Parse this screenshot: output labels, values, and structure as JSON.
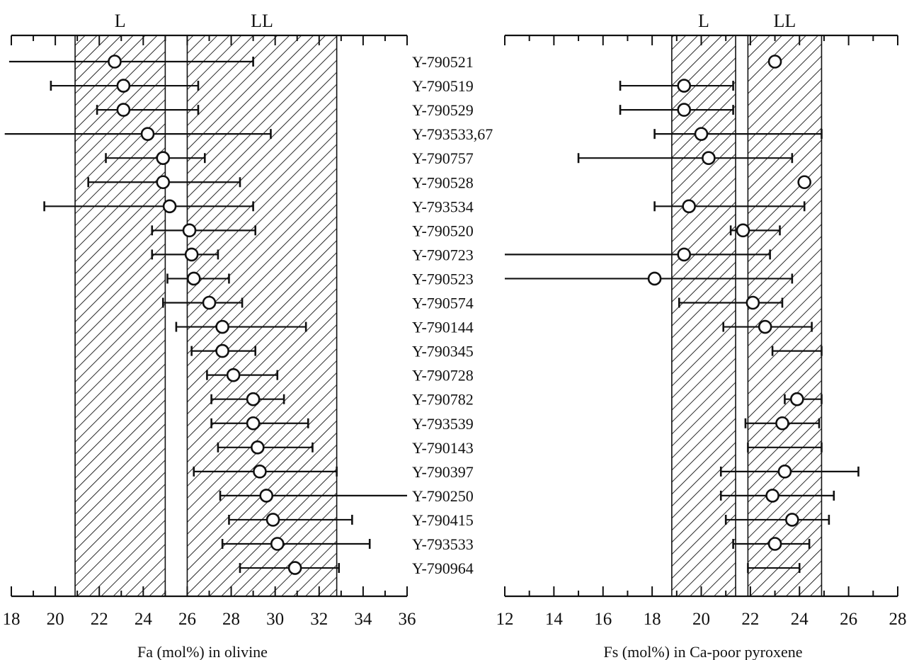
{
  "chart_data": [
    {
      "type": "scatter",
      "xlabel": "Fa (mol%) in olivine",
      "xlim": [
        18,
        36
      ],
      "xticks": [
        "18",
        "20",
        "22",
        "24",
        "26",
        "28",
        "30",
        "32",
        "34",
        "36"
      ],
      "zones": [
        {
          "label": "L",
          "range": [
            20.9,
            25.0
          ]
        },
        {
          "label": "LL",
          "range": [
            26.0,
            32.8
          ]
        }
      ],
      "points": [
        {
          "name": "Y-790521",
          "mean": 22.7,
          "min": 17.9,
          "max": 29.0
        },
        {
          "name": "Y-790519",
          "mean": 23.1,
          "min": 19.8,
          "max": 26.5
        },
        {
          "name": "Y-790529",
          "mean": 23.1,
          "min": 21.9,
          "max": 26.5
        },
        {
          "name": "Y-793533,67",
          "mean": 24.2,
          "min": 17.7,
          "max": 29.8
        },
        {
          "name": "Y-790757",
          "mean": 24.9,
          "min": 22.3,
          "max": 26.8
        },
        {
          "name": "Y-790528",
          "mean": 24.9,
          "min": 21.5,
          "max": 28.4
        },
        {
          "name": "Y-793534",
          "mean": 25.2,
          "min": 19.5,
          "max": 29.0
        },
        {
          "name": "Y-790520",
          "mean": 26.1,
          "min": 24.4,
          "max": 29.1
        },
        {
          "name": "Y-790723",
          "mean": 26.2,
          "min": 24.4,
          "max": 27.4
        },
        {
          "name": "Y-790523",
          "mean": 26.3,
          "min": 25.1,
          "max": 27.9
        },
        {
          "name": "Y-790574",
          "mean": 27.0,
          "min": 24.9,
          "max": 28.5
        },
        {
          "name": "Y-790144",
          "mean": 27.6,
          "min": 25.5,
          "max": 31.4
        },
        {
          "name": "Y-790345",
          "mean": 27.6,
          "min": 26.2,
          "max": 29.1
        },
        {
          "name": "Y-790728",
          "mean": 28.1,
          "min": 26.9,
          "max": 30.1
        },
        {
          "name": "Y-790782",
          "mean": 29.0,
          "min": 27.1,
          "max": 30.4
        },
        {
          "name": "Y-793539",
          "mean": 29.0,
          "min": 27.1,
          "max": 31.5
        },
        {
          "name": "Y-790143",
          "mean": 29.2,
          "min": 27.4,
          "max": 31.7
        },
        {
          "name": "Y-790397",
          "mean": 29.3,
          "min": 26.3,
          "max": 32.8
        },
        {
          "name": "Y-790250",
          "mean": 29.6,
          "min": 27.5,
          "max": 36.0
        },
        {
          "name": "Y-790415",
          "mean": 29.9,
          "min": 27.9,
          "max": 33.5
        },
        {
          "name": "Y-793533",
          "mean": 30.1,
          "min": 27.6,
          "max": 34.3
        },
        {
          "name": "Y-790964",
          "mean": 30.9,
          "min": 28.4,
          "max": 32.9
        }
      ]
    },
    {
      "type": "scatter",
      "xlabel": "Fs (mol%) in Ca-poor pyroxene",
      "xlim": [
        12,
        28
      ],
      "xticks": [
        "12",
        "14",
        "16",
        "18",
        "20",
        "22",
        "24",
        "26",
        "28"
      ],
      "zones": [
        {
          "label": "L",
          "range": [
            18.8,
            21.4
          ]
        },
        {
          "label": "LL",
          "range": [
            21.9,
            24.9
          ]
        }
      ],
      "points": [
        {
          "name": "Y-790521",
          "mean": 23.0,
          "min": null,
          "max": null
        },
        {
          "name": "Y-790519",
          "mean": 19.3,
          "min": 16.7,
          "max": 21.3
        },
        {
          "name": "Y-790529",
          "mean": 19.3,
          "min": 16.7,
          "max": 21.3
        },
        {
          "name": "Y-793533,67",
          "mean": 20.0,
          "min": 18.1,
          "max": 24.9
        },
        {
          "name": "Y-790757",
          "mean": 20.3,
          "min": 15.0,
          "max": 23.7
        },
        {
          "name": "Y-790528",
          "mean": 24.2,
          "min": null,
          "max": null
        },
        {
          "name": "Y-793534",
          "mean": 19.5,
          "min": 18.1,
          "max": 24.2
        },
        {
          "name": "Y-790520",
          "mean": 21.7,
          "min": 21.2,
          "max": 23.2
        },
        {
          "name": "Y-790723",
          "mean": 19.3,
          "min": 12.0,
          "max": 22.8
        },
        {
          "name": "Y-790523",
          "mean": 18.1,
          "min": 12.0,
          "max": 23.7
        },
        {
          "name": "Y-790574",
          "mean": 22.1,
          "min": 19.1,
          "max": 23.3
        },
        {
          "name": "Y-790144",
          "mean": 22.6,
          "min": 20.9,
          "max": 24.5
        },
        {
          "name": "Y-790345",
          "mean": null,
          "min": 22.9,
          "max": 24.9
        },
        {
          "name": "Y-790728",
          "mean": null,
          "min": null,
          "max": null
        },
        {
          "name": "Y-790782",
          "mean": 23.9,
          "min": 23.4,
          "max": 24.9
        },
        {
          "name": "Y-793539",
          "mean": 23.3,
          "min": 21.8,
          "max": 24.8
        },
        {
          "name": "Y-790143",
          "mean": null,
          "min": 21.9,
          "max": 24.9
        },
        {
          "name": "Y-790397",
          "mean": 23.4,
          "min": 20.8,
          "max": 26.4
        },
        {
          "name": "Y-790250",
          "mean": 22.9,
          "min": 20.8,
          "max": 25.4
        },
        {
          "name": "Y-790415",
          "mean": 23.7,
          "min": 21.0,
          "max": 25.2
        },
        {
          "name": "Y-793533",
          "mean": 23.0,
          "min": 21.3,
          "max": 24.4
        },
        {
          "name": "Y-790964",
          "mean": null,
          "min": 21.9,
          "max": 24.0
        }
      ]
    }
  ]
}
